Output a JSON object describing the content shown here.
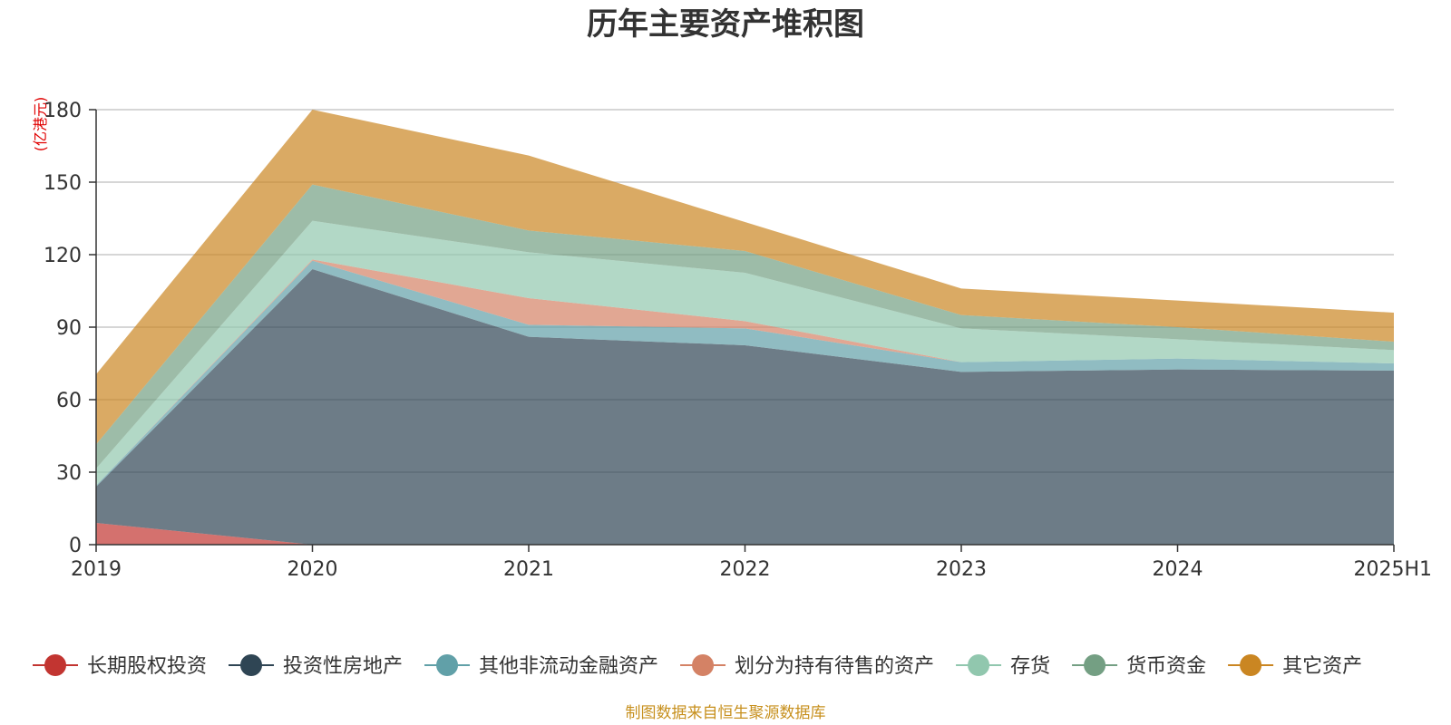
{
  "chart_data": {
    "type": "area",
    "stacked": true,
    "title": "历年主要资产堆积图",
    "unit_label": "(亿港元)",
    "categories": [
      "2019",
      "2020",
      "2021",
      "2022",
      "2023",
      "2024",
      "2025H1"
    ],
    "ylim": [
      0,
      180
    ],
    "yticks": [
      0,
      30,
      60,
      90,
      120,
      150,
      180
    ],
    "grid": true,
    "legend_position": "bottom",
    "series": [
      {
        "name": "长期股权投资",
        "color": "#c23531",
        "values": [
          9,
          0,
          0,
          0,
          0,
          0,
          0
        ]
      },
      {
        "name": "投资性房地产",
        "color": "#2f4554",
        "values": [
          15,
          114,
          86,
          82.5,
          71.5,
          72.5,
          72
        ]
      },
      {
        "name": "其他非流动金融资产",
        "color": "#61a0a8",
        "values": [
          0.5,
          3.5,
          5,
          7,
          4,
          4.5,
          3
        ]
      },
      {
        "name": "划分为持有待售的资产",
        "color": "#d48265",
        "values": [
          0,
          0.5,
          11,
          3,
          0,
          0,
          0
        ]
      },
      {
        "name": "存货",
        "color": "#91c7ae",
        "values": [
          7,
          16,
          19,
          20,
          14,
          8,
          5.5
        ]
      },
      {
        "name": "货币资金",
        "color": "#749f83",
        "values": [
          10,
          15,
          9,
          9,
          5.5,
          5,
          3.5
        ]
      },
      {
        "name": "其它资产",
        "color": "#ca8622",
        "values": [
          29,
          31,
          31,
          12,
          11,
          11,
          12
        ]
      }
    ]
  },
  "footer": {
    "source": "制图数据来自恒生聚源数据库"
  }
}
